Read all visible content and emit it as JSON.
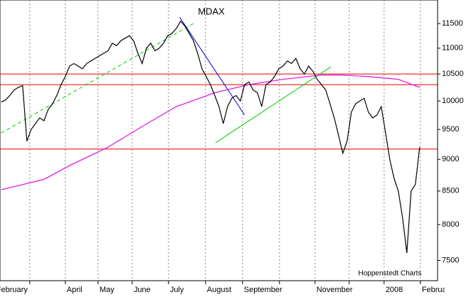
{
  "chart_data": {
    "type": "line",
    "title": "MDAX",
    "annotation": "Hoppenstedt Charts",
    "log_scale": true,
    "xlim": [
      -0.3,
      102.2
    ],
    "ylim": [
      7230,
      12000
    ],
    "yticks": [
      7500,
      8000,
      8500,
      9000,
      9500,
      10000,
      10500,
      11000,
      11500
    ],
    "xticks": [
      {
        "value": -1.5,
        "label": "February"
      },
      {
        "value": 6.67,
        "label": null
      },
      {
        "value": 15,
        "label": "April"
      },
      {
        "value": 22.67,
        "label": "May"
      },
      {
        "value": 30.67,
        "label": "June"
      },
      {
        "value": 39.17,
        "label": "July"
      },
      {
        "value": 47.83,
        "label": "August"
      },
      {
        "value": 56.5,
        "label": "September"
      },
      {
        "value": 65.17,
        "label": null
      },
      {
        "value": 73.5,
        "label": "November"
      },
      {
        "value": 81.5,
        "label": null
      },
      {
        "value": 89.67,
        "label": "2008"
      },
      {
        "value": 98.17,
        "label": "February"
      }
    ],
    "grid": true,
    "series": [
      {
        "name": "MDAX",
        "color": "#000000",
        "values": [
          9980,
          10020,
          10100,
          10200,
          10250,
          10280,
          9300,
          9500,
          9600,
          9700,
          9650,
          9850,
          9950,
          10100,
          10300,
          10450,
          10650,
          10700,
          10650,
          10600,
          10700,
          10750,
          10800,
          10850,
          10900,
          10950,
          11100,
          11050,
          11150,
          11200,
          11250,
          11150,
          10900,
          10700,
          11000,
          11100,
          10950,
          11000,
          11100,
          11250,
          11300,
          11400,
          11550,
          11450,
          11300,
          11150,
          10900,
          10600,
          10450,
          10300,
          10100,
          9900,
          9600,
          9900,
          10050,
          10100,
          10000,
          10300,
          10350,
          10200,
          10150,
          9900,
          10300,
          10350,
          10450,
          10600,
          10650,
          10750,
          10700,
          10800,
          10600,
          10500,
          10650,
          10550,
          10400,
          10300,
          10200,
          9950,
          9700,
          9400,
          9100,
          9300,
          9800,
          9950,
          10000,
          10050,
          9800,
          9700,
          9750,
          9900,
          9450,
          9000,
          8700,
          8500,
          8100,
          7600,
          8500,
          8600,
          9200
        ]
      },
      {
        "name": "moving-average",
        "color": "#e020e0",
        "x": [
          0,
          10,
          16,
          25,
          33,
          41,
          50,
          58,
          66,
          75,
          80,
          86,
          93,
          98
        ],
        "values": [
          8520,
          8680,
          8900,
          9200,
          9550,
          9900,
          10150,
          10300,
          10400,
          10480,
          10480,
          10450,
          10400,
          10250
        ]
      }
    ],
    "hlines": {
      "color": "#e00000",
      "values": [
        10500,
        10300,
        9170
      ]
    },
    "trendlines": [
      {
        "color": "#0000cc",
        "dashed": false,
        "x": [
          41.8,
          57
        ],
        "values": [
          11632,
          9750
        ]
      },
      {
        "color": "#00cc00",
        "dashed": true,
        "x": [
          0,
          45
        ],
        "values": [
          9440,
          11500
        ]
      },
      {
        "color": "#00cc00",
        "dashed": false,
        "x": [
          50.2,
          77.2
        ],
        "values": [
          9275,
          10636
        ]
      }
    ]
  }
}
